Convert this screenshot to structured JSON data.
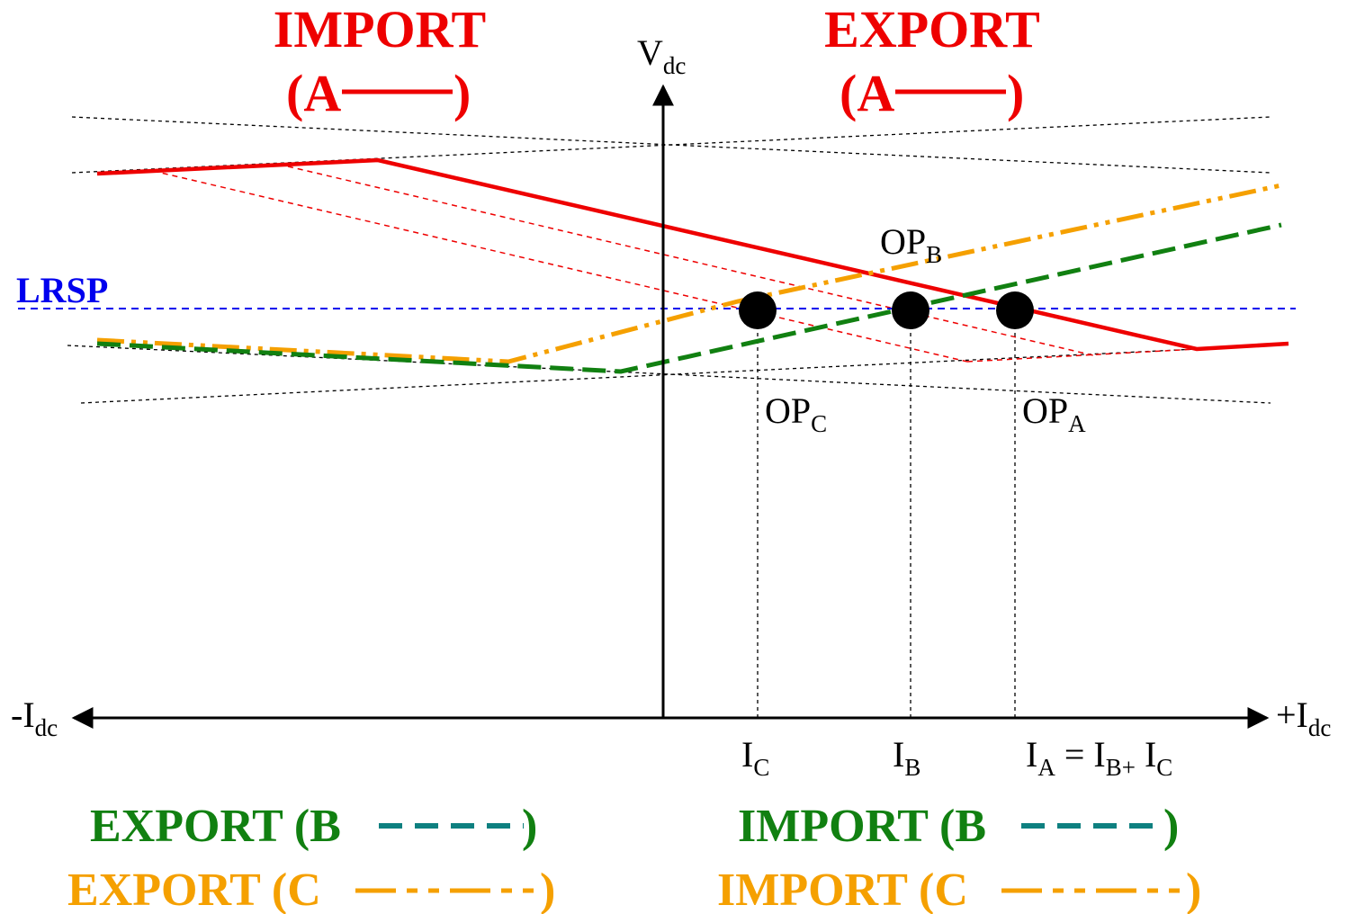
{
  "colors": {
    "A": "#ee0000",
    "B": "#118011",
    "C": "#f5a000",
    "lrsp": "#0000ee",
    "legend_dash_B": "#0e8080",
    "axis": "#000000"
  },
  "labels": {
    "top_left_1": "IMPORT",
    "top_left_2_open": "(A",
    "top_left_2_close": ")",
    "top_right_1": "EXPORT",
    "top_right_2_open": "(A",
    "top_right_2_close": ")",
    "y_axis_main": "V",
    "y_axis_sub": "dc",
    "x_neg_main": "-I",
    "x_neg_sub": "dc",
    "x_pos_main": "+I",
    "x_pos_sub": "dc",
    "lrsp": "LRSP",
    "op_b_main": "OP",
    "op_b_sub": "B",
    "op_c_main": "OP",
    "op_c_sub": "C",
    "op_a_main": "OP",
    "op_a_sub": "A",
    "ic_main": "I",
    "ic_sub": "C",
    "ib_main": "I",
    "ib_sub": "B",
    "ia_1": "I",
    "ia_1_sub": "A",
    "ia_2": " = I",
    "ia_2_sub": "B+",
    "ia_3": " I",
    "ia_3_sub": "C",
    "bottom_left_green_open": "EXPORT (B",
    "bottom_left_green_close": ")",
    "bottom_left_orange_open": "EXPORT (C",
    "bottom_left_orange_close": ")",
    "bottom_right_green_open": "IMPORT (B",
    "bottom_right_green_close": ")",
    "bottom_right_orange_open": "IMPORT (C",
    "bottom_right_orange_close": ")"
  }
}
